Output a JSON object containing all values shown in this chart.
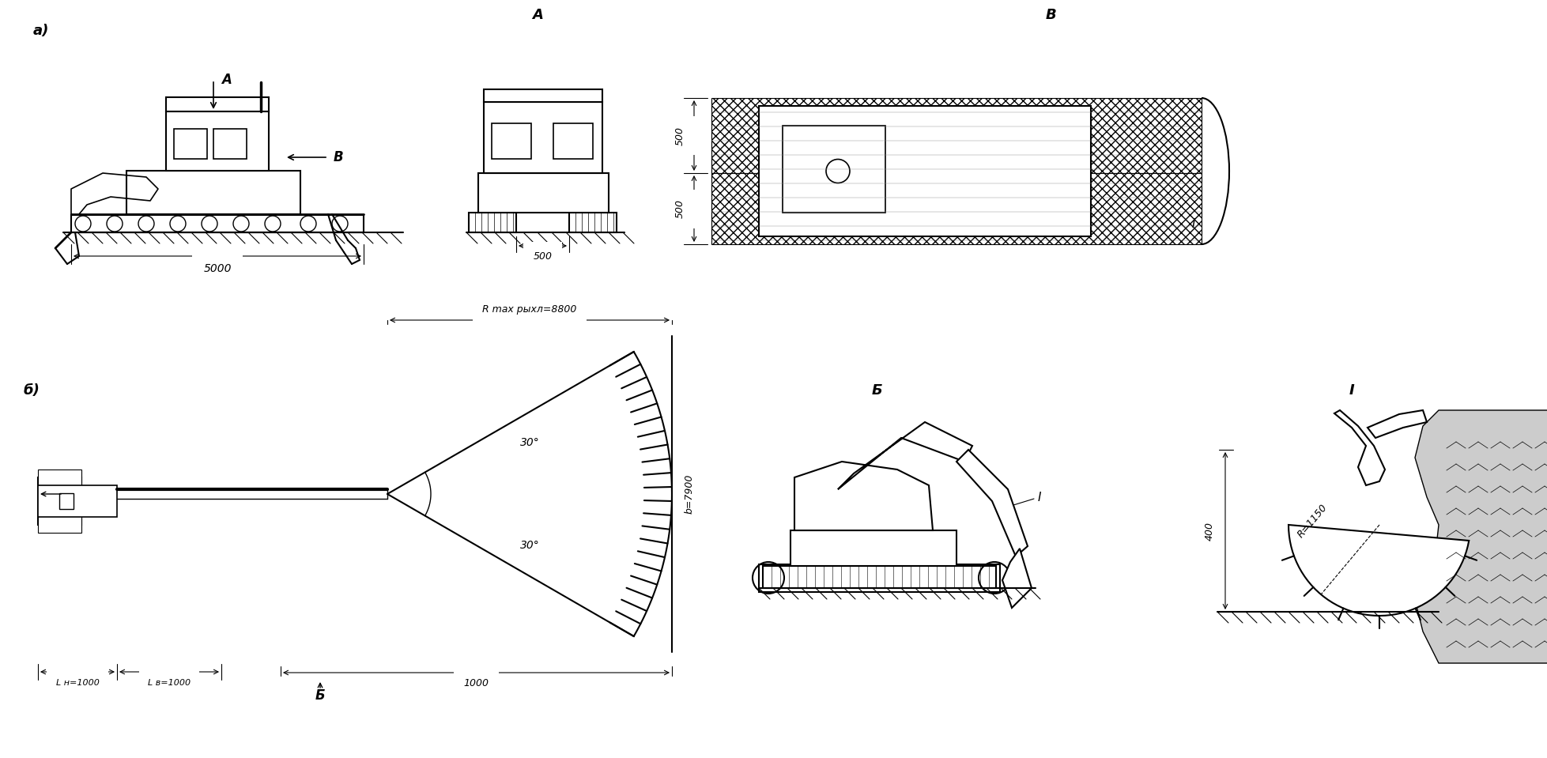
{
  "bg_color": "#ffffff",
  "label_a": "а)",
  "label_b": "б)",
  "label_A_top": "A",
  "label_B_right": "B",
  "label_A_mid": "A",
  "label_B_mid": "Б",
  "label_B_view": "В",
  "label_I": "I",
  "label_I_bucket": "I",
  "dim_5000": "5000",
  "dim_500_front": "500",
  "dim_500_top1": "500",
  "dim_500_top2": "500",
  "dim_Rmax": "R max рыхл=8800",
  "dim_30_top": "30°",
  "dim_30_bot": "30°",
  "dim_b7900": "b=7900",
  "dim_Ln": "L н=1000",
  "dim_Lv": "L в=1000",
  "dim_1000_bot": "1000",
  "dim_R1150": "R=1150",
  "dim_400": "400"
}
